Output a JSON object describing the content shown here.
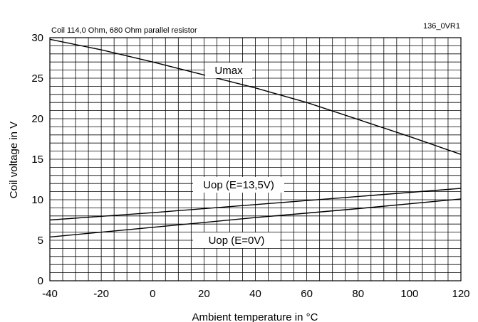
{
  "header": {
    "subtitle": "Coil 114,0 Ohm, 680 Ohm parallel resistor",
    "figure_id": "136_0VR1"
  },
  "chart_data": {
    "type": "line",
    "title": "",
    "subtitle": "Coil 114,0 Ohm, 680 Ohm parallel resistor",
    "xlabel": "Ambient temperature in °C",
    "ylabel": "Coil voltage in V",
    "xlim": [
      -40,
      120
    ],
    "ylim": [
      0,
      30
    ],
    "x_ticks": [
      -40,
      -20,
      0,
      20,
      40,
      60,
      80,
      100,
      120
    ],
    "y_ticks": [
      0,
      5,
      10,
      15,
      20,
      25,
      30
    ],
    "x_tick_labels": [
      "-40",
      "-20",
      "0",
      "20",
      "40",
      "60",
      "80",
      "100",
      "120"
    ],
    "y_tick_labels": [
      "0",
      "5",
      "10",
      "15",
      "20",
      "25",
      "30"
    ],
    "grid": true,
    "grid_minor_x_step": 5,
    "grid_minor_y_step": 1,
    "series": [
      {
        "name": "Umax",
        "x": [
          -40,
          -20,
          0,
          20,
          40,
          60,
          80,
          100,
          120
        ],
        "y": [
          29.8,
          28.5,
          27.0,
          25.4,
          23.8,
          22.0,
          19.9,
          17.8,
          15.6
        ]
      },
      {
        "name": "Uop (E=13,5V)",
        "x": [
          -40,
          0,
          40,
          80,
          120
        ],
        "y": [
          7.5,
          8.4,
          9.4,
          10.4,
          11.4
        ]
      },
      {
        "name": "Uop (E=0V)",
        "x": [
          -40,
          0,
          40,
          80,
          120
        ],
        "y": [
          5.4,
          6.6,
          7.8,
          8.9,
          10.1
        ]
      }
    ]
  }
}
